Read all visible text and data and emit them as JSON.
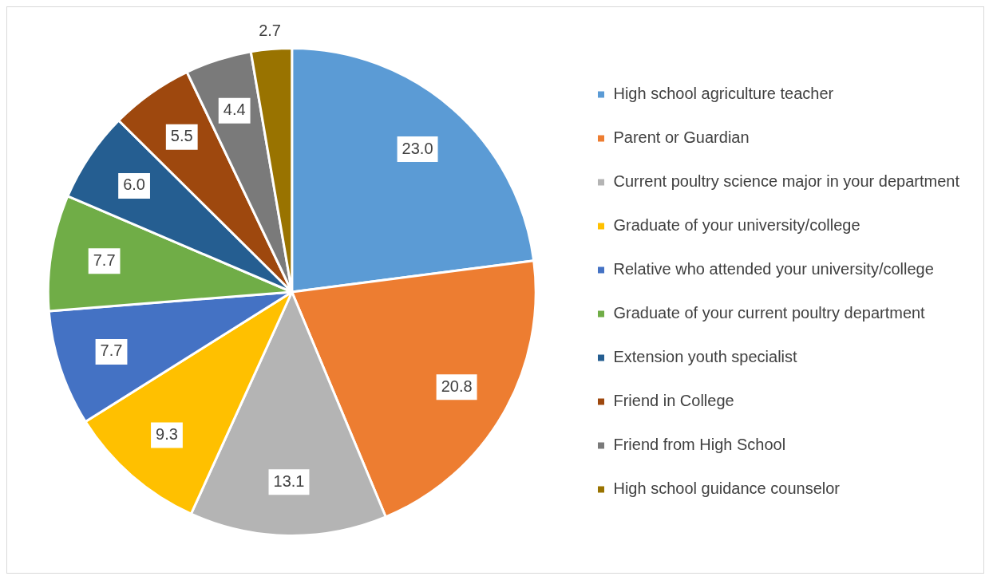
{
  "chart_data": {
    "type": "pie",
    "categories": [
      "High school agriculture teacher",
      "Parent or Guardian",
      "Current poultry science major in your department",
      "Graduate of your university/college",
      "Relative who attended your university/college",
      "Graduate of your current poultry department",
      "Extension youth specialist",
      "Friend in College",
      "Friend from High School",
      "High school guidance counselor"
    ],
    "values": [
      23.0,
      20.8,
      13.1,
      9.3,
      7.7,
      7.7,
      6.0,
      5.5,
      4.4,
      2.7
    ],
    "value_labels": [
      "23.0",
      "20.8",
      "13.1",
      "9.3",
      "7.7",
      "7.7",
      "6.0",
      "5.5",
      "4.4",
      "2.7"
    ],
    "colors": [
      "#5b9bd5",
      "#ed7d31",
      "#b4b4b4",
      "#ffc000",
      "#4472c4",
      "#70ad47",
      "#255e91",
      "#9e480e",
      "#7a7a7a",
      "#997300"
    ],
    "legend": "right"
  }
}
